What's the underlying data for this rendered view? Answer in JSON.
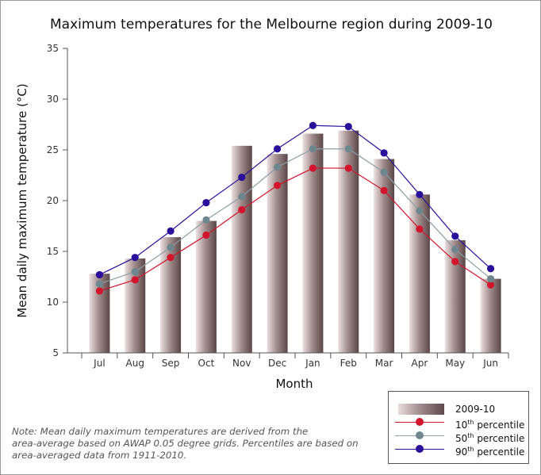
{
  "chart_data": {
    "type": "bar",
    "title": "Maximum temperatures for the Melbourne region during 2009-10",
    "xlabel": "Month",
    "ylabel": "Mean daily maximum temperature (°C)",
    "ylim": [
      5,
      35
    ],
    "yticks": [
      5,
      10,
      15,
      20,
      25,
      30,
      35
    ],
    "categories": [
      "Jul",
      "Aug",
      "Sep",
      "Oct",
      "Nov",
      "Dec",
      "Jan",
      "Feb",
      "Mar",
      "Apr",
      "May",
      "Jun"
    ],
    "grid": false,
    "legend_position": "bottom-right",
    "series": [
      {
        "name": "2009-10",
        "kind": "bar",
        "color": "#8c7676",
        "values": [
          12.8,
          14.3,
          16.4,
          18.0,
          25.4,
          24.6,
          26.6,
          26.9,
          24.1,
          20.6,
          16.1,
          12.3
        ]
      },
      {
        "name": "10th percentile",
        "kind": "line",
        "color": "#d2142c",
        "values": [
          11.1,
          12.2,
          14.4,
          16.6,
          19.1,
          21.5,
          23.2,
          23.2,
          21.0,
          17.2,
          14.0,
          11.7
        ]
      },
      {
        "name": "50th percentile",
        "kind": "line",
        "color": "#6e868e",
        "values": [
          11.8,
          13.0,
          15.4,
          18.1,
          20.4,
          23.3,
          25.1,
          25.1,
          22.8,
          19.0,
          15.2,
          12.3
        ]
      },
      {
        "name": "90th percentile",
        "kind": "line",
        "color": "#2a0f9a",
        "values": [
          12.7,
          14.4,
          17.0,
          19.8,
          22.3,
          25.1,
          27.4,
          27.3,
          24.7,
          20.6,
          16.5,
          13.3
        ]
      }
    ]
  },
  "legend": {
    "bar_label": "2009-10",
    "p10": {
      "num": "10",
      "suffix": "th",
      "rest": " percentile"
    },
    "p50": {
      "num": "50",
      "suffix": "th",
      "rest": " percentile"
    },
    "p90": {
      "num": "90",
      "suffix": "th",
      "rest": " percentile"
    }
  },
  "note": {
    "line1": "Note: Mean daily maximum temperatures are derived from the",
    "line2": "area-average based on AWAP 0.05 degree grids. Percentiles are based on",
    "line3": "area-averaged data from 1911-2010."
  }
}
